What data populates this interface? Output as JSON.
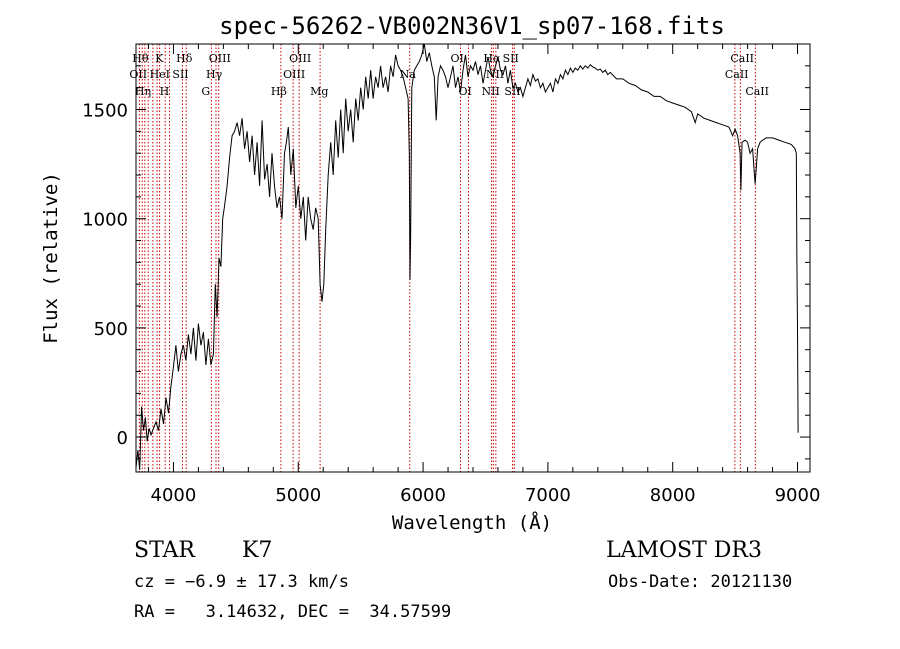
{
  "chart_data": {
    "type": "line",
    "title": "spec-56262-VB002N36V1_sp07-168.fits",
    "xlabel": "Wavelength (Å)",
    "ylabel": "Flux (relative)",
    "xlim": [
      3700,
      9100
    ],
    "ylim": [
      -160,
      1800
    ],
    "x_ticks": [
      4000,
      5000,
      6000,
      7000,
      8000,
      9000
    ],
    "y_ticks": [
      0,
      500,
      1000,
      1500
    ],
    "x_tick_labels": [
      "4000",
      "5000",
      "6000",
      "7000",
      "8000",
      "9000"
    ],
    "y_tick_labels": [
      "0",
      "500",
      "1000",
      "1500"
    ],
    "line_color": "#000000",
    "marker_color": "#cc0000",
    "series": [
      {
        "name": "flux",
        "points": [
          [
            3700,
            -140
          ],
          [
            3715,
            -60
          ],
          [
            3730,
            -150
          ],
          [
            3745,
            140
          ],
          [
            3760,
            30
          ],
          [
            3775,
            90
          ],
          [
            3790,
            -20
          ],
          [
            3805,
            40
          ],
          [
            3820,
            10
          ],
          [
            3840,
            40
          ],
          [
            3860,
            70
          ],
          [
            3880,
            30
          ],
          [
            3900,
            130
          ],
          [
            3920,
            60
          ],
          [
            3940,
            180
          ],
          [
            3960,
            110
          ],
          [
            3980,
            230
          ],
          [
            4000,
            320
          ],
          [
            4020,
            420
          ],
          [
            4040,
            300
          ],
          [
            4060,
            380
          ],
          [
            4080,
            420
          ],
          [
            4100,
            350
          ],
          [
            4120,
            470
          ],
          [
            4140,
            380
          ],
          [
            4160,
            500
          ],
          [
            4180,
            350
          ],
          [
            4200,
            520
          ],
          [
            4220,
            420
          ],
          [
            4240,
            480
          ],
          [
            4260,
            330
          ],
          [
            4280,
            450
          ],
          [
            4300,
            330
          ],
          [
            4320,
            380
          ],
          [
            4335,
            700
          ],
          [
            4350,
            550
          ],
          [
            4365,
            820
          ],
          [
            4380,
            780
          ],
          [
            4395,
            1000
          ],
          [
            4410,
            1060
          ],
          [
            4430,
            1150
          ],
          [
            4450,
            1280
          ],
          [
            4470,
            1380
          ],
          [
            4490,
            1400
          ],
          [
            4510,
            1440
          ],
          [
            4530,
            1380
          ],
          [
            4550,
            1460
          ],
          [
            4570,
            1320
          ],
          [
            4590,
            1400
          ],
          [
            4610,
            1260
          ],
          [
            4630,
            1380
          ],
          [
            4650,
            1200
          ],
          [
            4670,
            1350
          ],
          [
            4690,
            1150
          ],
          [
            4710,
            1450
          ],
          [
            4730,
            1180
          ],
          [
            4750,
            1250
          ],
          [
            4770,
            1100
          ],
          [
            4790,
            1300
          ],
          [
            4810,
            1150
          ],
          [
            4830,
            1050
          ],
          [
            4850,
            1100
          ],
          [
            4870,
            1000
          ],
          [
            4890,
            1300
          ],
          [
            4905,
            1350
          ],
          [
            4920,
            1420
          ],
          [
            4940,
            1200
          ],
          [
            4960,
            1320
          ],
          [
            4980,
            1050
          ],
          [
            5000,
            1150
          ],
          [
            5020,
            1000
          ],
          [
            5040,
            1100
          ],
          [
            5060,
            900
          ],
          [
            5080,
            1100
          ],
          [
            5100,
            1000
          ],
          [
            5120,
            950
          ],
          [
            5140,
            1050
          ],
          [
            5160,
            1000
          ],
          [
            5175,
            700
          ],
          [
            5190,
            620
          ],
          [
            5205,
            700
          ],
          [
            5220,
            950
          ],
          [
            5240,
            1200
          ],
          [
            5260,
            1350
          ],
          [
            5280,
            1200
          ],
          [
            5300,
            1450
          ],
          [
            5320,
            1280
          ],
          [
            5340,
            1500
          ],
          [
            5360,
            1300
          ],
          [
            5380,
            1550
          ],
          [
            5400,
            1400
          ],
          [
            5420,
            1500
          ],
          [
            5440,
            1350
          ],
          [
            5460,
            1550
          ],
          [
            5480,
            1450
          ],
          [
            5500,
            1600
          ],
          [
            5520,
            1500
          ],
          [
            5540,
            1650
          ],
          [
            5560,
            1550
          ],
          [
            5580,
            1680
          ],
          [
            5600,
            1550
          ],
          [
            5620,
            1650
          ],
          [
            5640,
            1600
          ],
          [
            5660,
            1700
          ],
          [
            5680,
            1600
          ],
          [
            5700,
            1650
          ],
          [
            5720,
            1580
          ],
          [
            5740,
            1700
          ],
          [
            5760,
            1650
          ],
          [
            5780,
            1750
          ],
          [
            5800,
            1700
          ],
          [
            5820,
            1680
          ],
          [
            5840,
            1650
          ],
          [
            5860,
            1600
          ],
          [
            5880,
            1550
          ],
          [
            5890,
            1300
          ],
          [
            5895,
            720
          ],
          [
            5900,
            900
          ],
          [
            5910,
            1600
          ],
          [
            5930,
            1680
          ],
          [
            5950,
            1700
          ],
          [
            5970,
            1720
          ],
          [
            5990,
            1750
          ],
          [
            6010,
            1800
          ],
          [
            6030,
            1720
          ],
          [
            6050,
            1760
          ],
          [
            6070,
            1700
          ],
          [
            6090,
            1650
          ],
          [
            6105,
            1450
          ],
          [
            6120,
            1650
          ],
          [
            6140,
            1700
          ],
          [
            6160,
            1680
          ],
          [
            6180,
            1650
          ],
          [
            6200,
            1600
          ],
          [
            6220,
            1650
          ],
          [
            6240,
            1700
          ],
          [
            6260,
            1600
          ],
          [
            6280,
            1650
          ],
          [
            6300,
            1580
          ],
          [
            6320,
            1680
          ],
          [
            6340,
            1750
          ],
          [
            6360,
            1650
          ],
          [
            6380,
            1700
          ],
          [
            6400,
            1680
          ],
          [
            6420,
            1720
          ],
          [
            6440,
            1660
          ],
          [
            6460,
            1700
          ],
          [
            6480,
            1620
          ],
          [
            6500,
            1680
          ],
          [
            6520,
            1740
          ],
          [
            6540,
            1680
          ],
          [
            6560,
            1650
          ],
          [
            6580,
            1700
          ],
          [
            6600,
            1740
          ],
          [
            6620,
            1680
          ],
          [
            6640,
            1660
          ],
          [
            6660,
            1700
          ],
          [
            6680,
            1620
          ],
          [
            6700,
            1680
          ],
          [
            6720,
            1600
          ],
          [
            6740,
            1620
          ],
          [
            6760,
            1580
          ],
          [
            6780,
            1600
          ],
          [
            6800,
            1560
          ],
          [
            6820,
            1600
          ],
          [
            6840,
            1640
          ],
          [
            6860,
            1610
          ],
          [
            6880,
            1660
          ],
          [
            6900,
            1630
          ],
          [
            6920,
            1640
          ],
          [
            6940,
            1600
          ],
          [
            6960,
            1620
          ],
          [
            6980,
            1580
          ],
          [
            7000,
            1600
          ],
          [
            7020,
            1620
          ],
          [
            7040,
            1580
          ],
          [
            7060,
            1640
          ],
          [
            7080,
            1620
          ],
          [
            7100,
            1660
          ],
          [
            7120,
            1640
          ],
          [
            7140,
            1680
          ],
          [
            7160,
            1660
          ],
          [
            7180,
            1690
          ],
          [
            7200,
            1670
          ],
          [
            7220,
            1690
          ],
          [
            7240,
            1680
          ],
          [
            7260,
            1700
          ],
          [
            7280,
            1685
          ],
          [
            7300,
            1700
          ],
          [
            7320,
            1690
          ],
          [
            7340,
            1705
          ],
          [
            7360,
            1695
          ],
          [
            7380,
            1690
          ],
          [
            7400,
            1680
          ],
          [
            7420,
            1685
          ],
          [
            7440,
            1670
          ],
          [
            7460,
            1680
          ],
          [
            7480,
            1660
          ],
          [
            7500,
            1670
          ],
          [
            7550,
            1640
          ],
          [
            7600,
            1640
          ],
          [
            7650,
            1620
          ],
          [
            7700,
            1610
          ],
          [
            7750,
            1590
          ],
          [
            7800,
            1580
          ],
          [
            7850,
            1560
          ],
          [
            7900,
            1560
          ],
          [
            7950,
            1540
          ],
          [
            8000,
            1530
          ],
          [
            8050,
            1520
          ],
          [
            8100,
            1510
          ],
          [
            8150,
            1490
          ],
          [
            8180,
            1440
          ],
          [
            8200,
            1480
          ],
          [
            8250,
            1460
          ],
          [
            8300,
            1450
          ],
          [
            8350,
            1440
          ],
          [
            8400,
            1430
          ],
          [
            8450,
            1420
          ],
          [
            8480,
            1380
          ],
          [
            8500,
            1410
          ],
          [
            8520,
            1380
          ],
          [
            8540,
            1300
          ],
          [
            8546,
            1130
          ],
          [
            8555,
            1350
          ],
          [
            8580,
            1360
          ],
          [
            8600,
            1350
          ],
          [
            8620,
            1300
          ],
          [
            8640,
            1320
          ],
          [
            8660,
            1160
          ],
          [
            8668,
            1220
          ],
          [
            8680,
            1320
          ],
          [
            8700,
            1350
          ],
          [
            8720,
            1360
          ],
          [
            8750,
            1370
          ],
          [
            8800,
            1370
          ],
          [
            8850,
            1360
          ],
          [
            8900,
            1350
          ],
          [
            8950,
            1340
          ],
          [
            8980,
            1320
          ],
          [
            8990,
            1300
          ],
          [
            8995,
            800
          ],
          [
            9000,
            500
          ],
          [
            9005,
            20
          ]
        ]
      }
    ],
    "lines": [
      {
        "x": 3727,
        "label": "OII",
        "row": 2
      },
      {
        "x": 3750,
        "label": "Hθ",
        "row": 1
      },
      {
        "x": 3771,
        "label": "Hη",
        "row": 3
      },
      {
        "x": 3798,
        "label": "",
        "row": 0
      },
      {
        "x": 3835,
        "label": "",
        "row": 0
      },
      {
        "x": 3869,
        "label": "",
        "row": 0
      },
      {
        "x": 3889,
        "label": "HeI",
        "row": 2
      },
      {
        "x": 3934,
        "label": "K",
        "row": 1
      },
      {
        "x": 3969,
        "label": "H",
        "row": 3
      },
      {
        "x": 4072,
        "label": "SII",
        "row": 2
      },
      {
        "x": 4102,
        "label": "Hδ",
        "row": 1
      },
      {
        "x": 4304,
        "label": "G",
        "row": 3
      },
      {
        "x": 4341,
        "label": "Hγ",
        "row": 2
      },
      {
        "x": 4363,
        "label": "OIII",
        "row": 1
      },
      {
        "x": 4861,
        "label": "Hβ",
        "row": 3
      },
      {
        "x": 4959,
        "label": "OIII",
        "row": 2
      },
      {
        "x": 5007,
        "label": "OIII",
        "row": 1
      },
      {
        "x": 5175,
        "label": "Mg",
        "row": 3
      },
      {
        "x": 5893,
        "label": "Na",
        "row": 2
      },
      {
        "x": 6300,
        "label": "OI",
        "row": 1
      },
      {
        "x": 6364,
        "label": "OI",
        "row": 3
      },
      {
        "x": 6548,
        "label": "NII",
        "row": 3
      },
      {
        "x": 6563,
        "label": "Hα",
        "row": 1
      },
      {
        "x": 6583,
        "label": "NII",
        "row": 2
      },
      {
        "x": 6717,
        "label": "SII",
        "row": 1
      },
      {
        "x": 6731,
        "label": "SII",
        "row": 3
      },
      {
        "x": 8498,
        "label": "CaII",
        "row": 2
      },
      {
        "x": 8542,
        "label": "CaII",
        "row": 1
      },
      {
        "x": 8662,
        "label": "CaII",
        "row": 3
      }
    ]
  },
  "info": {
    "object_class": "STAR",
    "subclass": "K7",
    "survey": "LAMOST DR3",
    "redshift": "cz = −6.9 ± 17.3 km/s",
    "obs_date": "Obs-Date: 20121130",
    "coords": "RA =   3.14632, DEC =  34.57599"
  }
}
